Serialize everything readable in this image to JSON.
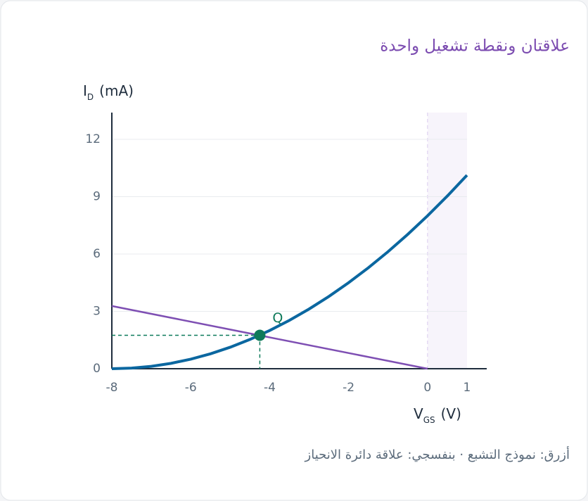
{
  "chart_data": {
    "type": "line",
    "title": "علاقتان ونقطة تشغيل واحدة",
    "y_label": {
      "symbol": "I",
      "sub": "D",
      "unit": "(mA)"
    },
    "x_label": {
      "symbol": "V",
      "sub": "GS",
      "unit": "(V)"
    },
    "caption": "أزرق: نموذج التشبع · بنفسجي: علاقة دائرة الانحياز",
    "xlim": [
      -8,
      1.5
    ],
    "ylim": [
      0,
      13.4
    ],
    "xticks": [
      -8,
      -6,
      -4,
      -2,
      0,
      1
    ],
    "yticks": [
      0,
      3,
      6,
      9,
      12
    ],
    "grid": true,
    "shade_x": [
      0,
      1
    ],
    "series": [
      {
        "color": "#0b67a0",
        "x": [
          -8,
          -7.5,
          -7,
          -6.5,
          -6,
          -5.5,
          -5,
          -4.5,
          -4,
          -3.5,
          -3,
          -2.5,
          -2,
          -1.5,
          -1,
          -0.5,
          0,
          0.5,
          1
        ],
        "values": [
          0,
          0.03125,
          0.125,
          0.28125,
          0.5,
          0.78125,
          1.125,
          1.53125,
          2,
          2.53125,
          3.125,
          3.78125,
          4.5,
          5.28125,
          6.125,
          7.03125,
          8,
          9.03125,
          10.125
        ]
      },
      {
        "color": "#7e4fb3",
        "x": [
          -8,
          0
        ],
        "values": [
          3.28,
          0
        ]
      }
    ],
    "point": {
      "label": "Q",
      "x": -4.25,
      "y": 1.75,
      "color": "#0e7a5a"
    }
  }
}
